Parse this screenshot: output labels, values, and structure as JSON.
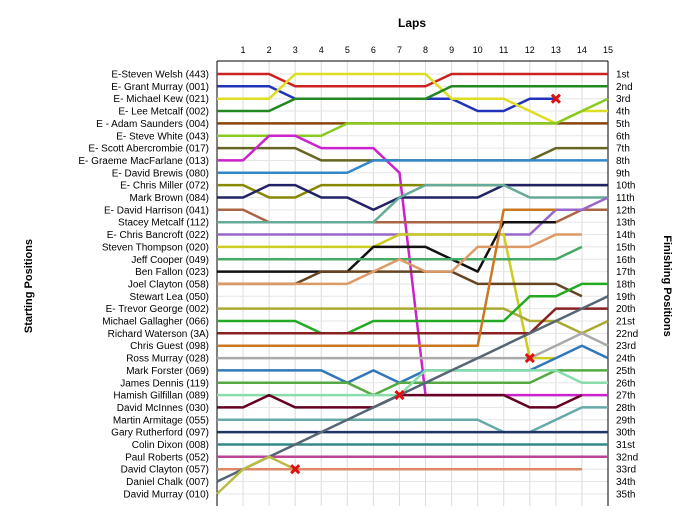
{
  "chart_data": {
    "type": "line",
    "title": "Laps",
    "xlabel": "Laps",
    "ylabel_left": "Starting Positions",
    "ylabel_right": "Finishing Positions",
    "x_ticks": [
      1,
      2,
      3,
      4,
      5,
      6,
      7,
      8,
      9,
      10,
      11,
      12,
      13,
      14,
      15
    ],
    "xlim": [
      0,
      15
    ],
    "ylim": [
      1,
      35
    ],
    "y_inverted": true,
    "grid": true,
    "drivers": [
      "E-Steven Welsh (443)",
      "E- Grant Murray (001)",
      "E- Michael Kew (021)",
      "E- Lee Metcalf (002)",
      "E - Adam Saunders (004)",
      "E- Steve White (043)",
      "E- Scott Abercrombie (017)",
      "E- Graeme MacFarlane (013)",
      "E- David Brewis (080)",
      "E- Chris Miller (072)",
      "Mark Brown (084)",
      "E- David Harrison (041)",
      "Stacey Metcalf (112)",
      "E- Chris Bancroft (022)",
      "Steven Thompson (020)",
      "Jeff Cooper (049)",
      "Ben Fallon (023)",
      "Joel Clayton (058)",
      "Stewart Lea (050)",
      "E- Trevor George (002)",
      "Michael Gallagher (066)",
      "Richard Waterson (3A)",
      "Chris Guest (098)",
      "Ross Murray (028)",
      "Mark Forster (069)",
      "James Dennis (119)",
      "Hamish Gilfillan (089)",
      "David McInnes (030)",
      "Martin Armitage (055)",
      "Gary Rutherford (097)",
      "Colin Dixon (008)",
      "Paul Roberts (052)",
      "David Clayton (057)",
      "Daniel Chalk (007)",
      "David Murray (010)"
    ],
    "finishing_positions": [
      "1st",
      "2nd",
      "3rd",
      "4th",
      "5th",
      "6th",
      "7th",
      "8th",
      "9th",
      "10th",
      "11th",
      "12th",
      "13th",
      "14th",
      "15th",
      "16th",
      "17th",
      "18th",
      "19th",
      "20th",
      "21st",
      "22nd",
      "23rd",
      "24th",
      "25th",
      "26th",
      "27th",
      "28th",
      "29th",
      "30th",
      "31st",
      "32nd",
      "33rd",
      "34th",
      "35th"
    ],
    "series": [
      {
        "color": "#cc2222",
        "positions": [
          1,
          1,
          1,
          2,
          2,
          2,
          2,
          2,
          2,
          1,
          1,
          1,
          1,
          1,
          1,
          1
        ]
      },
      {
        "color": "#2233bb",
        "positions": [
          2,
          2,
          2,
          3,
          3,
          3,
          3,
          3,
          3,
          3,
          4,
          4,
          3,
          3
        ]
      },
      {
        "color": "#dddd22",
        "positions": [
          3,
          3,
          3,
          1,
          1,
          1,
          1,
          1,
          1,
          3,
          3,
          3,
          4,
          5,
          4,
          4
        ]
      },
      {
        "color": "#228822",
        "positions": [
          4,
          4,
          4,
          3,
          3,
          3,
          3,
          3,
          3,
          2,
          2,
          2,
          2,
          2,
          2,
          2
        ]
      },
      {
        "color": "#884400",
        "positions": [
          5,
          5,
          5,
          5,
          5,
          5,
          5,
          5,
          5,
          5,
          5,
          5,
          5,
          5,
          5,
          5
        ]
      },
      {
        "color": "#88cc22",
        "positions": [
          6,
          6,
          6,
          6,
          6,
          5,
          5,
          5,
          5,
          5,
          5,
          5,
          5,
          5,
          4,
          3
        ]
      },
      {
        "color": "#666622",
        "positions": [
          7,
          7,
          7,
          7,
          8,
          8,
          8,
          8,
          8,
          8,
          8,
          8,
          8,
          7,
          7,
          7
        ]
      },
      {
        "color": "#cc22cc",
        "positions": [
          8,
          8,
          6,
          6,
          7,
          7,
          7,
          9,
          27,
          27,
          27,
          27,
          27,
          27,
          27,
          27
        ]
      },
      {
        "color": "#3388cc",
        "positions": [
          9,
          9,
          9,
          9,
          9,
          9,
          8,
          8,
          8,
          8,
          8,
          8,
          8,
          8,
          8,
          8
        ]
      },
      {
        "color": "#888800",
        "positions": [
          10,
          10,
          11,
          11,
          10,
          10,
          10,
          10,
          10,
          10,
          10,
          10,
          10,
          10,
          10,
          10
        ]
      },
      {
        "color": "#222266",
        "positions": [
          11,
          11,
          10,
          10,
          11,
          11,
          12,
          11,
          11,
          11,
          11,
          10,
          10,
          10,
          10,
          10
        ]
      },
      {
        "color": "#aa6644",
        "positions": [
          12,
          12,
          13,
          13,
          13,
          13,
          13,
          13,
          13,
          13,
          13,
          13,
          13,
          13,
          12,
          12
        ]
      },
      {
        "color": "#66aa99",
        "positions": [
          13,
          13,
          13,
          13,
          13,
          13,
          13,
          11,
          10,
          10,
          10,
          10,
          11,
          11,
          11,
          11
        ]
      },
      {
        "color": "#9966cc",
        "positions": [
          14,
          14,
          14,
          14,
          14,
          14,
          14,
          14,
          14,
          14,
          14,
          14,
          14,
          12,
          12,
          11
        ]
      },
      {
        "color": "#cccc22",
        "positions": [
          15,
          15,
          15,
          15,
          15,
          15,
          15,
          14,
          14,
          14,
          14,
          14,
          24,
          24
        ]
      },
      {
        "color": "#111111",
        "positions": [
          17,
          17,
          17,
          17,
          17,
          17,
          15,
          15,
          15,
          16,
          17,
          13,
          13,
          13
        ]
      },
      {
        "color": "#44aa66",
        "positions": [
          16,
          16,
          16,
          16,
          16,
          16,
          16,
          16,
          16,
          16,
          16,
          16,
          16,
          16,
          15
        ]
      },
      {
        "color": "#664422",
        "positions": [
          18,
          18,
          18,
          18,
          17,
          17,
          17,
          17,
          17,
          17,
          18,
          18,
          18,
          18,
          19
        ]
      },
      {
        "color": "#dd9966",
        "positions": [
          18,
          18,
          18,
          18,
          18,
          18,
          17,
          16,
          17,
          17,
          15,
          15,
          15,
          14,
          14
        ]
      },
      {
        "color": "#aaaa33",
        "positions": [
          20,
          20,
          20,
          20,
          20,
          20,
          20,
          20,
          20,
          20,
          20,
          20,
          21,
          21,
          22,
          21
        ]
      },
      {
        "color": "#22aa22",
        "positions": [
          21,
          21,
          21,
          21,
          22,
          22,
          21,
          21,
          21,
          21,
          21,
          21,
          19,
          19,
          18,
          18
        ]
      },
      {
        "color": "#882222",
        "positions": [
          22,
          22,
          22,
          22,
          22,
          22,
          22,
          22,
          22,
          22,
          22,
          22,
          22,
          20,
          20,
          20
        ]
      },
      {
        "color": "#cc7722",
        "positions": [
          23,
          23,
          23,
          23,
          23,
          23,
          23,
          23,
          23,
          23,
          23,
          12,
          12,
          12
        ]
      },
      {
        "color": "#aaaaaa",
        "positions": [
          24,
          24,
          24,
          24,
          24,
          24,
          24,
          24,
          24,
          24,
          24,
          24,
          24,
          23,
          22,
          23
        ]
      },
      {
        "color": "#3377bb",
        "positions": [
          25,
          25,
          25,
          25,
          25,
          26,
          25,
          26,
          25,
          25,
          25,
          25,
          25,
          24,
          23,
          24
        ]
      },
      {
        "color": "#55aa44",
        "positions": [
          26,
          26,
          26,
          26,
          26,
          26,
          27,
          26,
          26,
          26,
          26,
          26,
          26,
          25,
          25,
          25
        ]
      },
      {
        "color": "#88ddaa",
        "positions": [
          27,
          27,
          27,
          27,
          27,
          27,
          27,
          27,
          25,
          25,
          25,
          25,
          25,
          25,
          26,
          26
        ]
      },
      {
        "color": "#660022",
        "positions": [
          28,
          28,
          27,
          28,
          28,
          28,
          28,
          27,
          27,
          27,
          27,
          27,
          28,
          28,
          27
        ]
      },
      {
        "color": "#66aaaa",
        "positions": [
          29,
          29,
          29,
          29,
          29,
          29,
          29,
          29,
          29,
          29,
          29,
          30,
          30,
          29,
          28,
          28
        ]
      },
      {
        "color": "#223366",
        "positions": [
          30,
          30,
          30,
          30,
          30,
          30,
          30,
          30,
          30,
          30,
          30,
          30,
          30,
          30,
          30,
          30
        ]
      },
      {
        "color": "#338888",
        "positions": [
          31,
          31,
          31,
          31,
          31,
          31,
          31,
          31,
          31,
          31,
          31,
          31,
          31,
          31,
          31,
          31
        ]
      },
      {
        "color": "#bb4499",
        "positions": [
          32,
          32,
          32,
          32,
          32,
          32,
          32,
          32,
          32,
          32,
          32,
          32,
          32,
          32,
          32,
          32
        ]
      },
      {
        "color": "#dd8866",
        "positions": [
          33,
          33,
          33,
          33,
          33,
          33,
          33,
          33,
          33,
          33,
          33,
          33,
          33,
          33,
          33
        ]
      },
      {
        "color": "#556677",
        "positions": [
          34,
          33,
          32,
          31,
          30,
          29,
          28,
          27,
          26,
          25,
          24,
          23,
          22,
          21,
          20,
          19
        ]
      },
      {
        "color": "#bbbb44",
        "positions": [
          35,
          33,
          32,
          33
        ]
      }
    ],
    "retirements": [
      {
        "lap": 3,
        "position": 33
      },
      {
        "lap": 7,
        "position": 27
      },
      {
        "lap": 12,
        "position": 24
      },
      {
        "lap": 13,
        "position": 3
      }
    ]
  }
}
